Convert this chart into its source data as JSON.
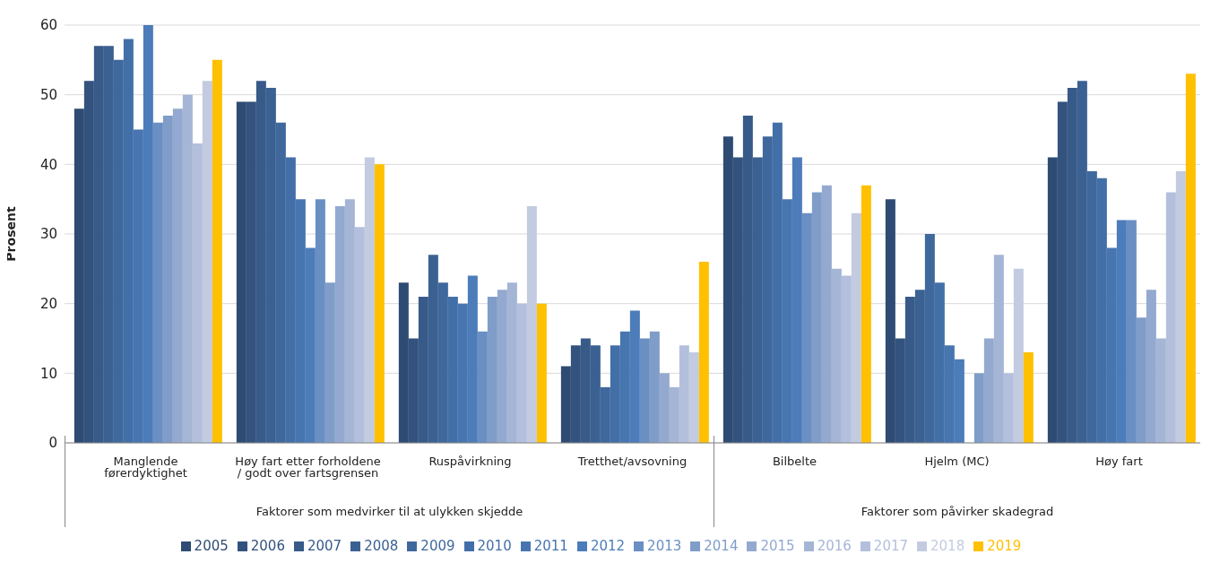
{
  "chart_data": {
    "type": "bar",
    "ylabel": "Prosent",
    "categories": [
      "Manglende førerdyktighet",
      "Høy fart etter forholdene / godt over fartsgrensen",
      "Ruspåvirkning",
      "Tretthet/avsovning",
      "Bilbelte",
      "Hjelm (MC)",
      "Høy fart"
    ],
    "series": [
      {
        "name": "2005",
        "color": "#2e4b73",
        "values": [
          48,
          49,
          23,
          11,
          44,
          35,
          41
        ]
      },
      {
        "name": "2006",
        "color": "#33527e",
        "values": [
          52,
          49,
          15,
          14,
          41,
          15,
          49
        ]
      },
      {
        "name": "2007",
        "color": "#375a89",
        "values": [
          57,
          52,
          21,
          15,
          47,
          21,
          51
        ]
      },
      {
        "name": "2008",
        "color": "#3b6192",
        "values": [
          57,
          51,
          27,
          14,
          41,
          22,
          52
        ]
      },
      {
        "name": "2009",
        "color": "#3f689d",
        "values": [
          55,
          46,
          23,
          8,
          44,
          30,
          39
        ]
      },
      {
        "name": "2010",
        "color": "#436fa8",
        "values": [
          58,
          41,
          21,
          14,
          46,
          23,
          38
        ]
      },
      {
        "name": "2011",
        "color": "#4775b0",
        "values": [
          45,
          35,
          20,
          16,
          35,
          14,
          28
        ]
      },
      {
        "name": "2012",
        "color": "#4c7cb9",
        "values": [
          60,
          28,
          24,
          19,
          41,
          12,
          32
        ]
      },
      {
        "name": "2013",
        "color": "#6a8fc3",
        "values": [
          46,
          35,
          16,
          15,
          33,
          null,
          32
        ]
      },
      {
        "name": "2014",
        "color": "#7f9dc8",
        "values": [
          47,
          23,
          21,
          16,
          36,
          10,
          18
        ]
      },
      {
        "name": "2015",
        "color": "#93a9cf",
        "values": [
          48,
          34,
          22,
          10,
          37,
          15,
          22
        ]
      },
      {
        "name": "2016",
        "color": "#a5b5d6",
        "values": [
          50,
          35,
          23,
          8,
          25,
          27,
          15
        ]
      },
      {
        "name": "2017",
        "color": "#b3bfdc",
        "values": [
          43,
          31,
          20,
          14,
          24,
          10,
          36
        ]
      },
      {
        "name": "2018",
        "color": "#c3cbe1",
        "values": [
          52,
          41,
          34,
          13,
          33,
          25,
          39
        ]
      },
      {
        "name": "2019",
        "color": "#ffc000",
        "values": [
          55,
          40,
          20,
          26,
          37,
          13,
          53
        ]
      }
    ],
    "ylim": [
      0,
      60
    ],
    "yticks": [
      0,
      10,
      20,
      30,
      40,
      50,
      60
    ],
    "grid": "y",
    "legend": "bottom",
    "annotations": [
      "Faktorer som medvirker til at ulykken skjedde",
      "Faktorer som påvirker skadegrad"
    ]
  }
}
